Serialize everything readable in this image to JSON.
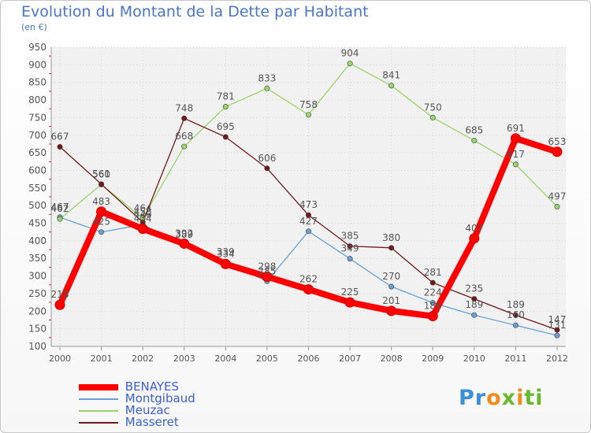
{
  "chart_data": {
    "type": "line",
    "title": "Evolution du Montant de la Dette par Habitant",
    "subtitle": "(en €)",
    "x": [
      "2000",
      "2001",
      "2002",
      "2003",
      "2004",
      "2005",
      "2006",
      "2007",
      "2008",
      "2009",
      "2010",
      "2011",
      "2012"
    ],
    "ylim": [
      100,
      950
    ],
    "yticks": [
      100,
      150,
      200,
      250,
      300,
      350,
      400,
      450,
      500,
      550,
      600,
      650,
      700,
      750,
      800,
      850,
      900,
      950
    ],
    "grid": true,
    "legend_position": "bottom-left",
    "series": [
      {
        "name": "BENAYES",
        "color": "#ff0000",
        "width": 8,
        "values": [
          218,
          483,
          434,
          392,
          334,
          298,
          262,
          225,
          201,
          186,
          407,
          691,
          653
        ]
      },
      {
        "name": "Montgibaud",
        "color": "#6a9ed0",
        "width": 1.3,
        "values": [
          467,
          425,
          446,
          389,
          339,
          285,
          427,
          349,
          270,
          224,
          189,
          160,
          131
        ]
      },
      {
        "name": "Meuzac",
        "color": "#9ad46a",
        "width": 1.3,
        "values": [
          462,
          560,
          464,
          668,
          781,
          833,
          758,
          904,
          841,
          750,
          685,
          617,
          497
        ]
      },
      {
        "name": "Masseret",
        "color": "#6e1a1a",
        "width": 1.3,
        "values": [
          667,
          561,
          453,
          748,
          695,
          606,
          473,
          385,
          380,
          281,
          235,
          189,
          147
        ]
      }
    ]
  },
  "logo_text": "Proxiti"
}
